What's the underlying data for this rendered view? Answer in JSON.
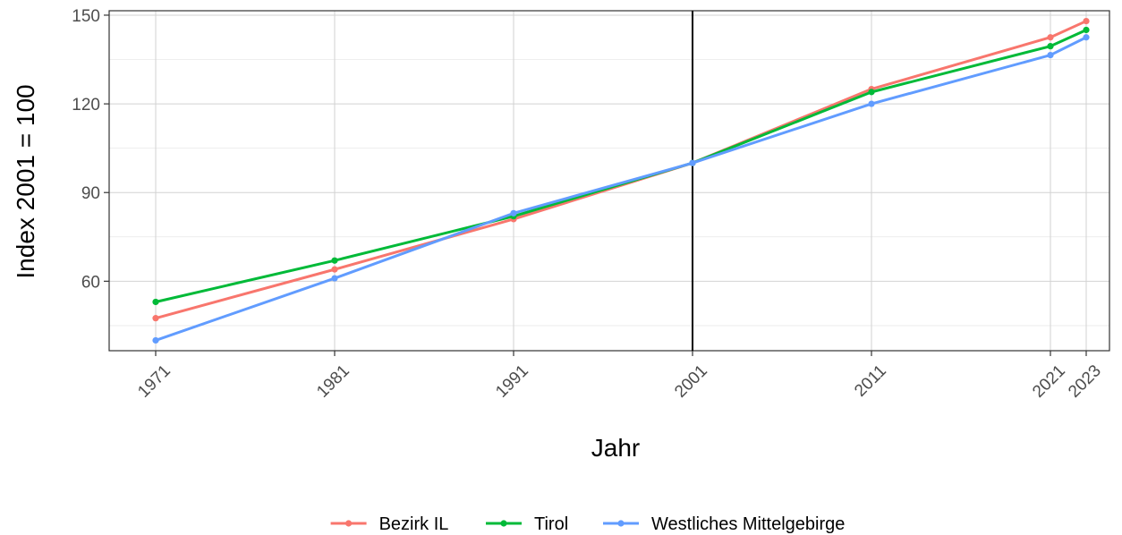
{
  "chart_data": {
    "type": "line",
    "xlabel": "Jahr",
    "ylabel": "Index 2001 = 100",
    "x": [
      1971,
      1981,
      1991,
      2001,
      2011,
      2021,
      2023
    ],
    "xticks": [
      "1971",
      "1981",
      "1991",
      "2001",
      "2011",
      "2021",
      "2023"
    ],
    "yticks": [
      60,
      90,
      120,
      150
    ],
    "xlim": [
      1968.4,
      2024.3
    ],
    "ylim": [
      36.5,
      151.5
    ],
    "reference_line_x": 2001,
    "grid": true,
    "legend_position": "bottom",
    "series": [
      {
        "name": "Bezirk IL",
        "color": "#F8766D",
        "values": [
          47.5,
          64,
          81,
          100,
          125,
          142.5,
          148
        ]
      },
      {
        "name": "Tirol",
        "color": "#00BA38",
        "values": [
          53,
          67,
          82,
          100,
          124,
          139.5,
          145
        ]
      },
      {
        "name": "Westliches Mittelgebirge",
        "color": "#619CFF",
        "values": [
          40,
          61,
          83,
          100,
          120,
          136.5,
          142.5
        ]
      }
    ]
  }
}
